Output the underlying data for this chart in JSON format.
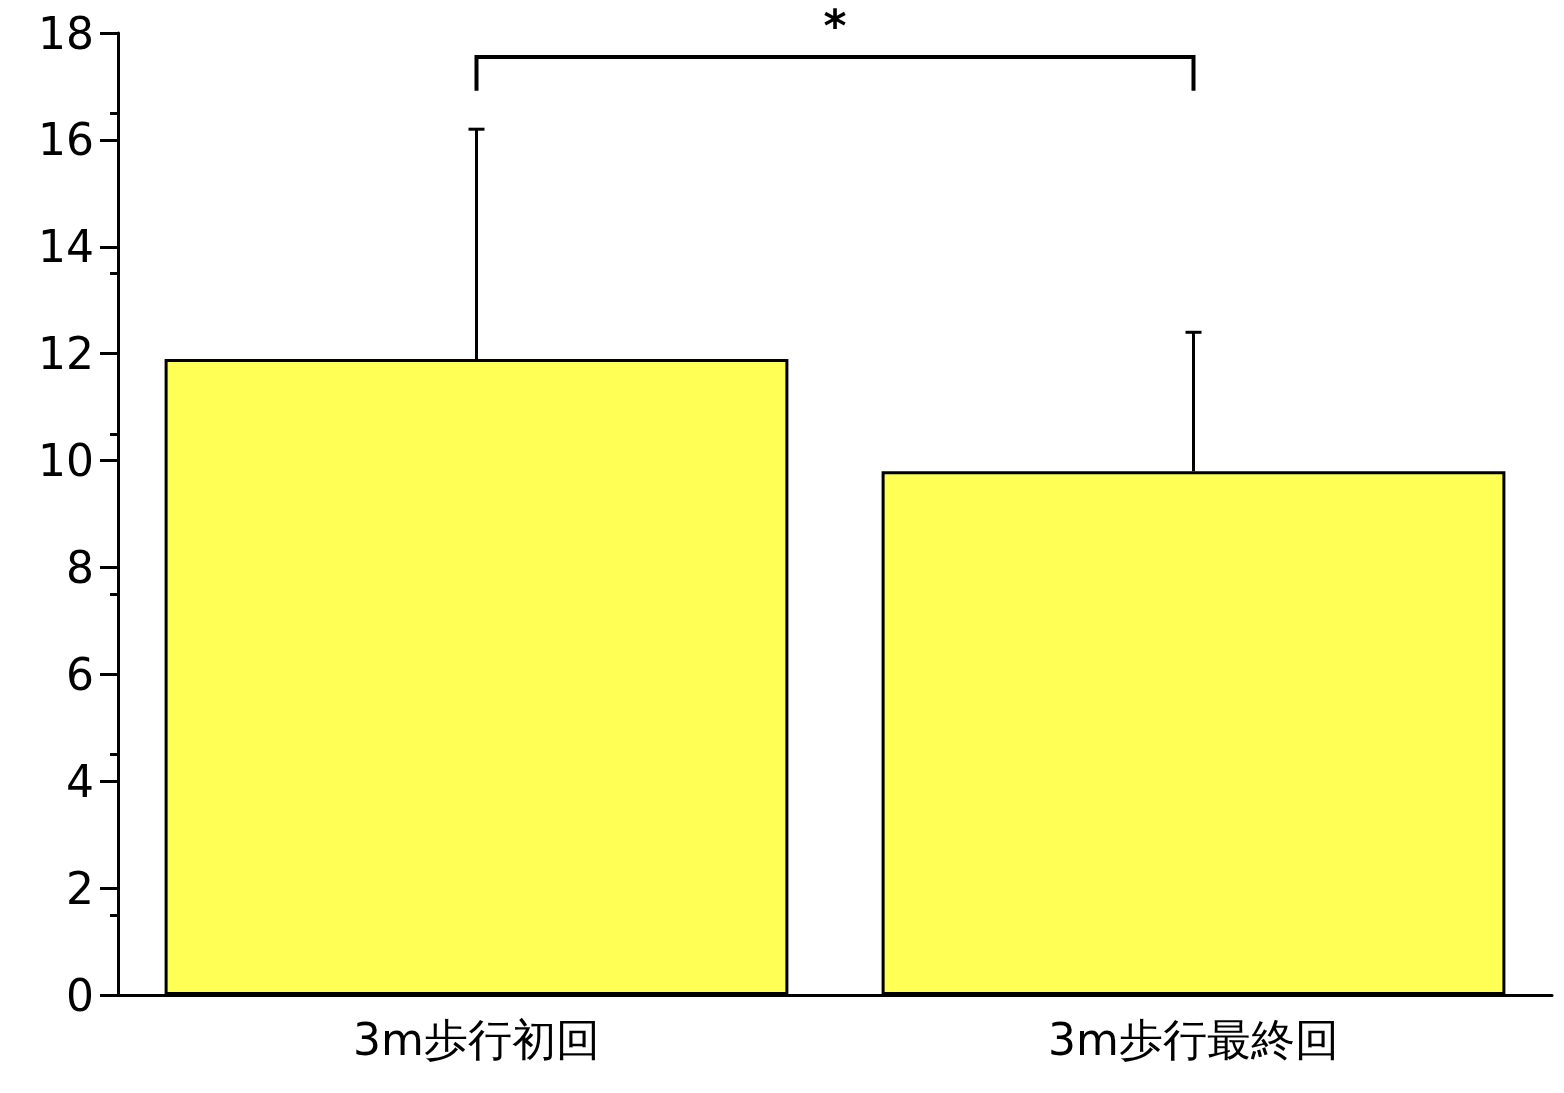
{
  "chart_data": {
    "type": "bar",
    "categories": [
      "3m歩行初回",
      "3m歩行最終回"
    ],
    "values": [
      11.9,
      9.8
    ],
    "errors": [
      [
        11.9,
        16.2
      ],
      [
        9.8,
        12.4
      ]
    ],
    "color": "#ffff55",
    "ylim": [
      0,
      18
    ],
    "yticks": [
      0,
      2,
      4,
      6,
      8,
      10,
      12,
      14,
      16,
      18
    ],
    "grid": false,
    "annotations": [
      "*"
    ]
  }
}
